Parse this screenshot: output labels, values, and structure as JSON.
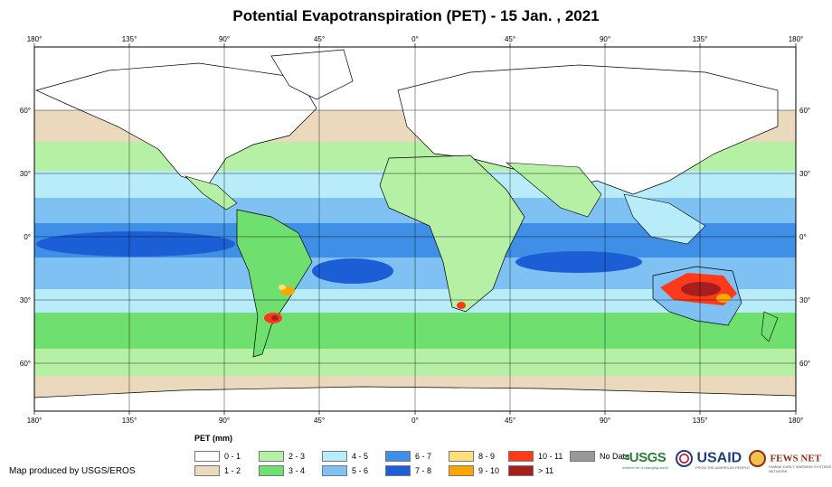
{
  "title": "Potential Evapotranspiration (PET) - 15 Jan. , 2021",
  "map": {
    "lon_ticks": [
      "180°",
      "135°",
      "90°",
      "45°",
      "0°",
      "45°",
      "90°",
      "135°",
      "180°"
    ],
    "lat_ticks": [
      "60°",
      "30°",
      "0°",
      "30°",
      "60°"
    ]
  },
  "legend": {
    "title": "PET (mm)",
    "items": [
      {
        "label": "0 - 1",
        "color": "#ffffff"
      },
      {
        "label": "1 - 2",
        "color": "#ead9bd"
      },
      {
        "label": "2 - 3",
        "color": "#b6f0a4"
      },
      {
        "label": "3 - 4",
        "color": "#6fe06f"
      },
      {
        "label": "4 - 5",
        "color": "#b8ecf8"
      },
      {
        "label": "5 - 6",
        "color": "#7ec1f2"
      },
      {
        "label": "6 - 7",
        "color": "#3f8fe6"
      },
      {
        "label": "7 - 8",
        "color": "#1c5ed6"
      },
      {
        "label": "8 - 9",
        "color": "#ffe07a"
      },
      {
        "label": "9 - 10",
        "color": "#ffa500"
      },
      {
        "label": "10 - 11",
        "color": "#ff3a1a"
      },
      {
        "label": "> 11",
        "color": "#a51f1f"
      },
      {
        "label": "No Data",
        "color": "#999999"
      }
    ]
  },
  "credit": "Map produced by USGS/EROS",
  "logos": {
    "usgs": {
      "mark": "≈USGS",
      "tag": "science for a changing world"
    },
    "usaid": {
      "mark": "USAID",
      "tag": "FROM THE AMERICAN PEOPLE"
    },
    "fews": {
      "mark": "FEWS NET",
      "tag": "FAMINE EARLY WARNING SYSTEMS NETWORK"
    }
  }
}
